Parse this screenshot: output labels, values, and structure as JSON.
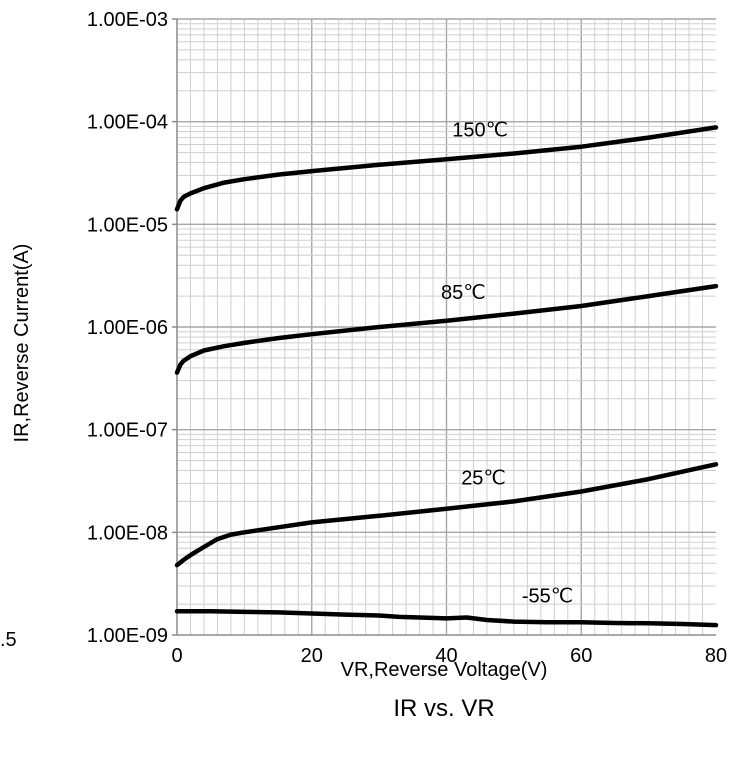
{
  "chart_data": {
    "type": "line",
    "title": "IR vs. VR",
    "xlabel": "VR,Reverse Voltage(V)",
    "ylabel": "IR,Reverse Current(A)",
    "xlim": [
      0,
      80
    ],
    "ylim": [
      1e-09,
      0.001
    ],
    "yscale": "log",
    "grid": true,
    "x_ticks": [
      "0",
      "20",
      "40",
      "60",
      "80"
    ],
    "y_ticks": [
      "1.00E-09",
      "1.00E-08",
      "1.00E-07",
      "1.00E-06",
      "1.00E-05",
      "1.00E-04",
      "1.00E-03"
    ],
    "edge_fragments": {
      "left_tick": ".5"
    },
    "series": [
      {
        "name": "150℃",
        "x": [
          0,
          0.5,
          1,
          2,
          4,
          7,
          10,
          15,
          20,
          30,
          40,
          50,
          60,
          70,
          80
        ],
        "y": [
          1.4e-05,
          1.7e-05,
          1.85e-05,
          2e-05,
          2.25e-05,
          2.55e-05,
          2.75e-05,
          3.05e-05,
          3.3e-05,
          3.8e-05,
          4.3e-05,
          4.9e-05,
          5.7e-05,
          7e-05,
          8.8e-05
        ]
      },
      {
        "name": "85℃",
        "x": [
          0,
          0.5,
          1,
          2,
          4,
          7,
          10,
          15,
          20,
          30,
          40,
          50,
          60,
          70,
          80
        ],
        "y": [
          3.6e-07,
          4.3e-07,
          4.7e-07,
          5.2e-07,
          5.9e-07,
          6.5e-07,
          7e-07,
          7.8e-07,
          8.5e-07,
          1e-06,
          1.15e-06,
          1.35e-06,
          1.6e-06,
          2e-06,
          2.5e-06
        ]
      },
      {
        "name": "25℃",
        "x": [
          0,
          1,
          2,
          4,
          6,
          8,
          10,
          15,
          20,
          30,
          40,
          50,
          60,
          70,
          80
        ],
        "y": [
          4.8e-09,
          5.4e-09,
          6e-09,
          7.2e-09,
          8.6e-09,
          9.5e-09,
          1e-08,
          1.12e-08,
          1.25e-08,
          1.45e-08,
          1.7e-08,
          2e-08,
          2.5e-08,
          3.3e-08,
          4.6e-08
        ]
      },
      {
        "name": "-55℃",
        "x": [
          0,
          5,
          10,
          15,
          20,
          25,
          30,
          33,
          36,
          40,
          43,
          46,
          50,
          55,
          60,
          65,
          70,
          75,
          80
        ],
        "y": [
          1.7e-09,
          1.7e-09,
          1.68e-09,
          1.66e-09,
          1.62e-09,
          1.58e-09,
          1.55e-09,
          1.5e-09,
          1.48e-09,
          1.45e-09,
          1.48e-09,
          1.4e-09,
          1.35e-09,
          1.33e-09,
          1.33e-09,
          1.31e-09,
          1.3e-09,
          1.28e-09,
          1.25e-09
        ]
      }
    ]
  }
}
